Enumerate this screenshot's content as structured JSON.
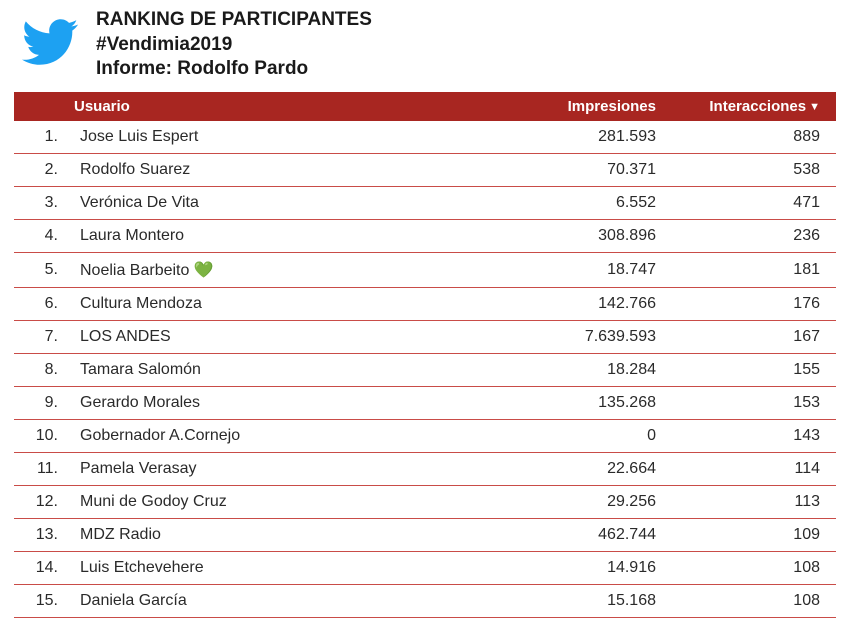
{
  "header": {
    "title": "RANKING DE PARTICIPANTES",
    "hashtag": "#Vendimia2019",
    "informe_label": "Informe:",
    "informe_author": "Rodolfo Pardo"
  },
  "colors": {
    "header_bg": "#a82621",
    "header_text": "#ffffff",
    "row_border": "#c94c47",
    "twitter_blue": "#1DA1F2",
    "text": "#2a2a2a"
  },
  "table": {
    "columns": {
      "rank": "",
      "user": "Usuario",
      "impressions": "Impresiones",
      "interactions": "Interacciones"
    },
    "sort_column": "interactions",
    "sort_direction": "desc",
    "rows": [
      {
        "rank": "1.",
        "user": "Jose Luis Espert",
        "impressions": "281.593",
        "interactions": "889"
      },
      {
        "rank": "2.",
        "user": "Rodolfo Suarez",
        "impressions": "70.371",
        "interactions": "538"
      },
      {
        "rank": "3.",
        "user": "Verónica De Vita",
        "impressions": "6.552",
        "interactions": "471"
      },
      {
        "rank": "4.",
        "user": "Laura Montero",
        "impressions": "308.896",
        "interactions": "236"
      },
      {
        "rank": "5.",
        "user": "Noelia Barbeito 💚",
        "impressions": "18.747",
        "interactions": "181"
      },
      {
        "rank": "6.",
        "user": "Cultura Mendoza",
        "impressions": "142.766",
        "interactions": "176"
      },
      {
        "rank": "7.",
        "user": "LOS ANDES",
        "impressions": "7.639.593",
        "interactions": "167"
      },
      {
        "rank": "8.",
        "user": "Tamara Salomón",
        "impressions": "18.284",
        "interactions": "155"
      },
      {
        "rank": "9.",
        "user": "Gerardo Morales",
        "impressions": "135.268",
        "interactions": "153"
      },
      {
        "rank": "10.",
        "user": "Gobernador A.Cornejo",
        "impressions": "0",
        "interactions": "143"
      },
      {
        "rank": "11.",
        "user": "Pamela Verasay",
        "impressions": "22.664",
        "interactions": "114"
      },
      {
        "rank": "12.",
        "user": "Muni de Godoy Cruz",
        "impressions": "29.256",
        "interactions": "113"
      },
      {
        "rank": "13.",
        "user": "MDZ Radio",
        "impressions": "462.744",
        "interactions": "109"
      },
      {
        "rank": "14.",
        "user": "Luis Etchevehere",
        "impressions": "14.916",
        "interactions": "108"
      },
      {
        "rank": "15.",
        "user": "Daniela García",
        "impressions": "15.168",
        "interactions": "108"
      }
    ]
  }
}
